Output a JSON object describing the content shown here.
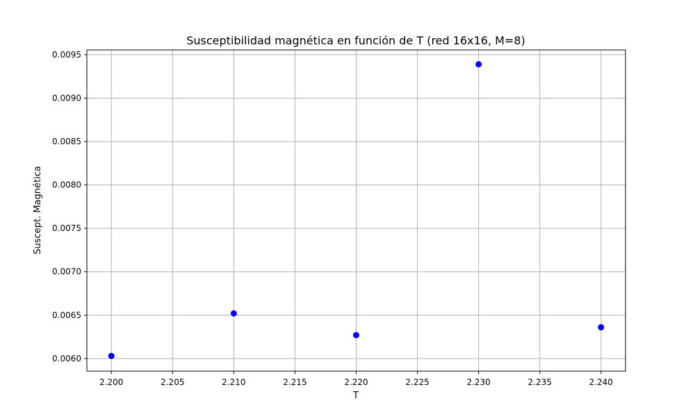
{
  "chart_data": {
    "type": "scatter",
    "title": "Susceptibilidad magnética en función de T (red 16x16, M=8)",
    "xlabel": "T",
    "ylabel": "Suscept. Magnética",
    "xlim": [
      2.198,
      2.242
    ],
    "ylim": [
      0.005855,
      0.009555
    ],
    "xticks": [
      2.2,
      2.205,
      2.21,
      2.215,
      2.22,
      2.225,
      2.23,
      2.235,
      2.24
    ],
    "xtick_labels": [
      "2.200",
      "2.205",
      "2.210",
      "2.215",
      "2.220",
      "2.225",
      "2.230",
      "2.235",
      "2.240"
    ],
    "yticks": [
      0.006,
      0.0065,
      0.007,
      0.0075,
      0.008,
      0.0085,
      0.009,
      0.0095
    ],
    "ytick_labels": [
      "0.0060",
      "0.0065",
      "0.0070",
      "0.0075",
      "0.0080",
      "0.0085",
      "0.0090",
      "0.0095"
    ],
    "grid": true,
    "marker_color": "#0000ff",
    "grid_color": "#b0b0b0",
    "series": [
      {
        "x": [
          2.2,
          2.21,
          2.22,
          2.23,
          2.24
        ],
        "y": [
          0.00603,
          0.00652,
          0.00627,
          0.00939,
          0.00636
        ]
      }
    ]
  }
}
